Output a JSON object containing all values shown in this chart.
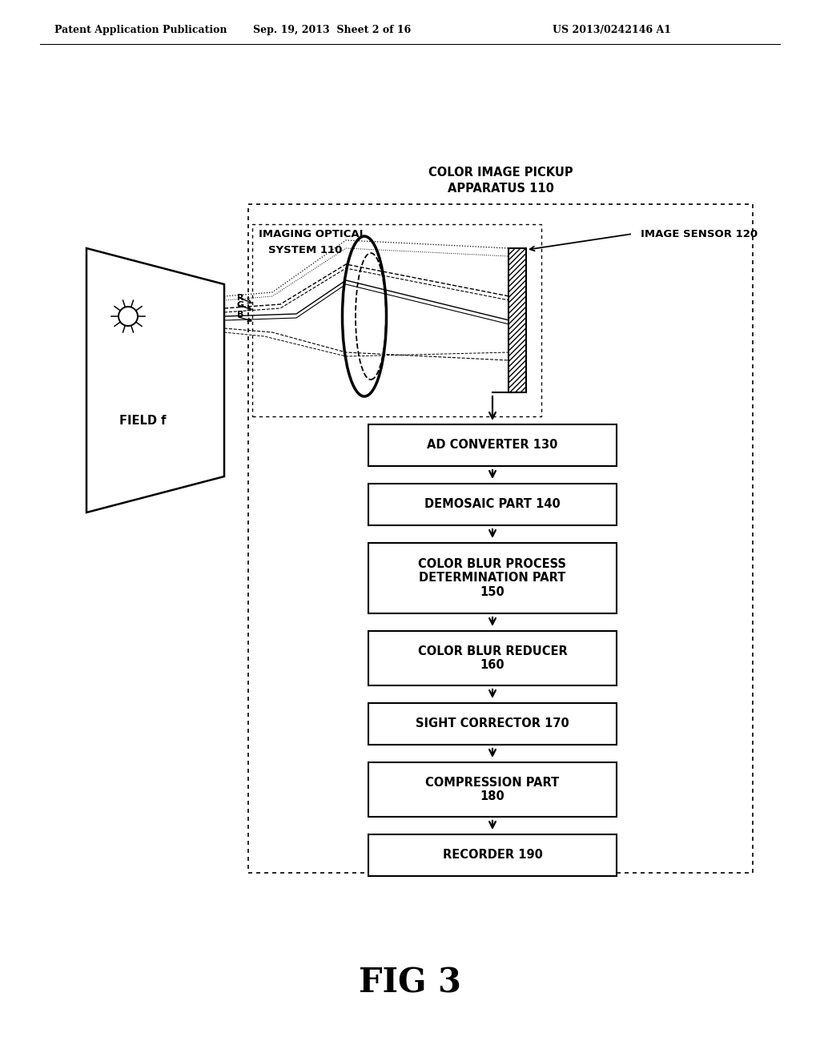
{
  "header_left": "Patent Application Publication",
  "header_center": "Sep. 19, 2013  Sheet 2 of 16",
  "header_right": "US 2013/0242146 A1",
  "fig_label": "FIG 3",
  "outer_box_label_1": "COLOR IMAGE PICKUP",
  "outer_box_label_2": "APPARATUS 110",
  "inner_box_label_1": "IMAGING OPTICAL",
  "inner_box_label_2": "SYSTEM 110",
  "sensor_label": "IMAGE SENSOR 120",
  "field_label": "FIELD f",
  "rgb_labels": [
    "R",
    "G",
    "B"
  ],
  "flow_boxes": [
    "AD CONVERTER 130",
    "DEMOSAIC PART 140",
    "COLOR BLUR PROCESS\nDETERMINATION PART\n150",
    "COLOR BLUR REDUCER\n160",
    "SIGHT CORRECTOR 170",
    "COMPRESSION PART\n180",
    "RECORDER 190"
  ],
  "bg_color": "#ffffff",
  "line_color": "#000000"
}
